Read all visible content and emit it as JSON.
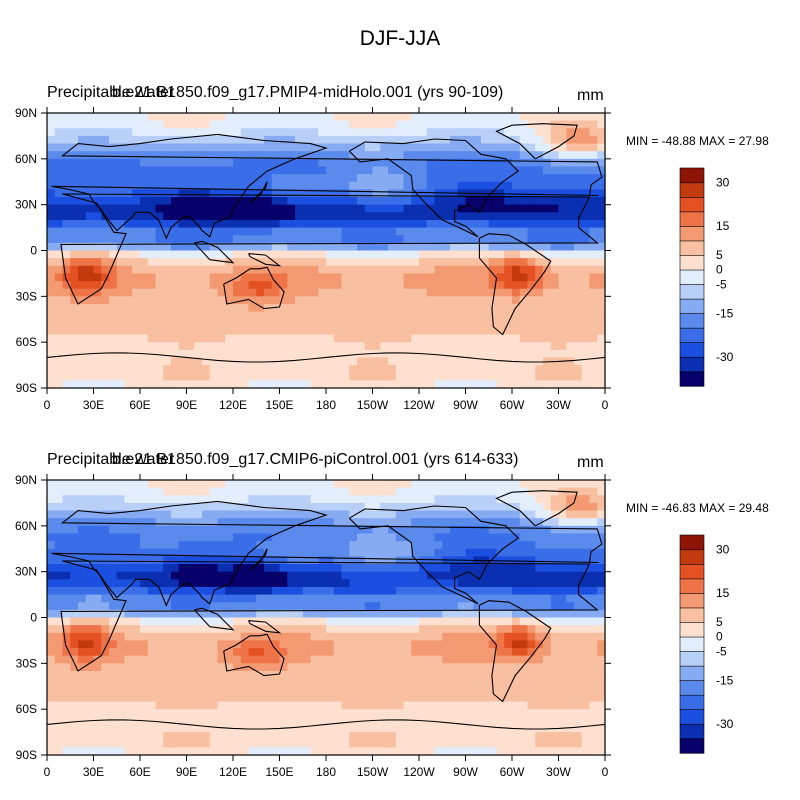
{
  "figure": {
    "title": "DJF-JJA"
  },
  "colorbar": {
    "levels": [
      -35,
      -30,
      -25,
      -20,
      -15,
      -10,
      -5,
      0,
      5,
      10,
      15,
      20,
      25,
      30,
      35
    ],
    "tick_labels": [
      "-30",
      "-15",
      "-5",
      "0",
      "5",
      "15",
      "30"
    ],
    "colors": [
      "#08006a",
      "#0a2fb0",
      "#1a4fe0",
      "#3a6ee8",
      "#5a8aec",
      "#86abf2",
      "#b8cff7",
      "#e3eefc",
      "#fde0cf",
      "#f8bfa0",
      "#f39a72",
      "#ee7448",
      "#e45224",
      "#c43a0f",
      "#8e1506"
    ]
  },
  "chart_data": [
    {
      "type": "heatmap",
      "variable": "Precipitable water",
      "case": "b.e21.B1850.f09_g17.PMIP4-midHolo.001 (yrs 90-109)",
      "units": "mm",
      "min_max": "MIN = -48.88 MAX =  27.98",
      "min": -48.88,
      "max": 27.98,
      "x_tick_labels": [
        "0",
        "30E",
        "60E",
        "90E",
        "120E",
        "150E",
        "180",
        "150W",
        "120W",
        "90W",
        "60W",
        "30W",
        "0"
      ],
      "y_tick_labels": [
        "90N",
        "60N",
        "30N",
        "0",
        "30S",
        "60S",
        "90S"
      ],
      "xlim": [
        0,
        360
      ],
      "ylim": [
        -90,
        90
      ],
      "field_description": "Strong negative (blue) values over northern hemisphere mid-latitudes and the northern tropics, positive (red) values over southern hemisphere tropics and subtropics, maxima over southern Africa, Australia and South America."
    },
    {
      "type": "heatmap",
      "variable": "Precipitable water",
      "case": "b.e21.B1850.f09_g17.CMIP6-piControl.001 (yrs 614-633)",
      "units": "mm",
      "min_max": "MIN = -46.83 MAX =  29.48",
      "min": -46.83,
      "max": 29.48,
      "x_tick_labels": [
        "0",
        "30E",
        "60E",
        "90E",
        "120E",
        "150E",
        "180",
        "150W",
        "120W",
        "90W",
        "60W",
        "30W",
        "0"
      ],
      "y_tick_labels": [
        "90N",
        "60N",
        "30N",
        "0",
        "30S",
        "60S",
        "90S"
      ],
      "xlim": [
        0,
        360
      ],
      "ylim": [
        -90,
        90
      ],
      "field_description": "Similar pattern to the mid-Holocene panel with slightly weaker northern hemisphere negative anomalies."
    }
  ]
}
